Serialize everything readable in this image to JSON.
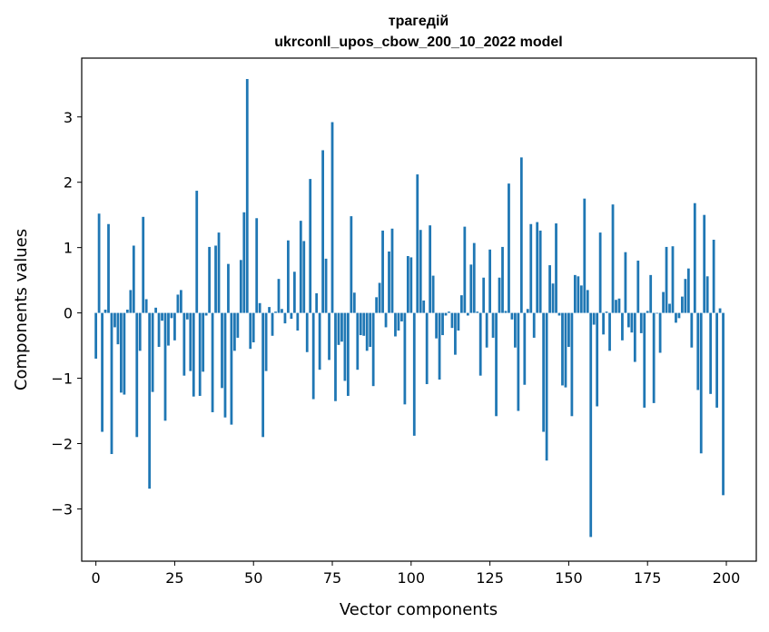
{
  "chart_data": {
    "type": "bar",
    "title": "трагедій",
    "subtitle": "ukrconll_upos_cbow_200_10_2022 model",
    "xlabel": "Vector components",
    "ylabel": "Components values",
    "xlim": [
      -4.5,
      209.5
    ],
    "ylim": [
      -3.8,
      3.9
    ],
    "xticks": [
      0,
      25,
      50,
      75,
      100,
      125,
      150,
      175,
      200
    ],
    "yticks": [
      -3,
      -2,
      -1,
      0,
      1,
      2,
      3
    ],
    "xtick_labels": [
      "0",
      "25",
      "50",
      "75",
      "100",
      "125",
      "150",
      "175",
      "200"
    ],
    "ytick_labels": [
      "−3",
      "−2",
      "−1",
      "0",
      "1",
      "2",
      "3"
    ],
    "bar_color": "#1f77b4",
    "grid": false,
    "x": [
      0,
      1,
      2,
      3,
      4,
      5,
      6,
      7,
      8,
      9,
      10,
      11,
      12,
      13,
      14,
      15,
      16,
      17,
      18,
      19,
      20,
      21,
      22,
      23,
      24,
      25,
      26,
      27,
      28,
      29,
      30,
      31,
      32,
      33,
      34,
      35,
      36,
      37,
      38,
      39,
      40,
      41,
      42,
      43,
      44,
      45,
      46,
      47,
      48,
      49,
      50,
      51,
      52,
      53,
      54,
      55,
      56,
      57,
      58,
      59,
      60,
      61,
      62,
      63,
      64,
      65,
      66,
      67,
      68,
      69,
      70,
      71,
      72,
      73,
      74,
      75,
      76,
      77,
      78,
      79,
      80,
      81,
      82,
      83,
      84,
      85,
      86,
      87,
      88,
      89,
      90,
      91,
      92,
      93,
      94,
      95,
      96,
      97,
      98,
      99,
      100,
      101,
      102,
      103,
      104,
      105,
      106,
      107,
      108,
      109,
      110,
      111,
      112,
      113,
      114,
      115,
      116,
      117,
      118,
      119,
      120,
      121,
      122,
      123,
      124,
      125,
      126,
      127,
      128,
      129,
      130,
      131,
      132,
      133,
      134,
      135,
      136,
      137,
      138,
      139,
      140,
      141,
      142,
      143,
      144,
      145,
      146,
      147,
      148,
      149,
      150,
      151,
      152,
      153,
      154,
      155,
      156,
      157,
      158,
      159,
      160,
      161,
      162,
      163,
      164,
      165,
      166,
      167,
      168,
      169,
      170,
      171,
      172,
      173,
      174,
      175,
      176,
      177,
      178,
      179,
      180,
      181,
      182,
      183,
      184,
      185,
      186,
      187,
      188,
      189,
      190,
      191,
      192,
      193,
      194,
      195,
      196,
      197,
      198,
      199
    ],
    "values": [
      -0.7,
      1.52,
      -1.82,
      0.05,
      1.36,
      -2.16,
      -0.22,
      -0.48,
      -1.22,
      -1.25,
      0.05,
      0.35,
      1.03,
      -1.9,
      -0.58,
      1.47,
      0.21,
      -2.69,
      -1.21,
      0.08,
      -0.52,
      -0.12,
      -1.65,
      -0.5,
      -0.08,
      -0.42,
      0.28,
      0.35,
      -0.96,
      -0.1,
      -0.89,
      -1.28,
      1.87,
      -1.27,
      -0.9,
      -0.04,
      1.01,
      -1.52,
      1.03,
      1.23,
      -1.15,
      -1.6,
      0.75,
      -1.71,
      -0.58,
      -0.38,
      0.81,
      1.54,
      3.58,
      -0.55,
      -0.45,
      1.45,
      0.15,
      -1.9,
      -0.89,
      0.09,
      -0.35,
      0.02,
      0.52,
      0.06,
      -0.16,
      1.11,
      -0.09,
      0.63,
      -0.27,
      1.41,
      1.1,
      -0.6,
      2.05,
      -1.32,
      0.3,
      -0.87,
      2.49,
      0.83,
      -0.72,
      2.92,
      -1.35,
      -0.49,
      -0.44,
      -1.04,
      -1.27,
      1.48,
      0.31,
      -0.87,
      -0.34,
      -0.35,
      -0.58,
      -0.52,
      -1.12,
      0.24,
      0.46,
      1.26,
      -0.22,
      0.94,
      1.29,
      -0.36,
      -0.27,
      -0.13,
      -1.4,
      0.87,
      0.85,
      -1.88,
      2.12,
      1.27,
      0.19,
      -1.09,
      1.34,
      0.57,
      -0.39,
      -1.02,
      -0.34,
      -0.04,
      0.02,
      -0.23,
      -0.64,
      -0.27,
      0.27,
      1.32,
      -0.04,
      0.74,
      1.07,
      0.02,
      -0.96,
      0.54,
      -0.53,
      0.97,
      -0.38,
      -1.58,
      0.54,
      1.01,
      0.03,
      1.98,
      -0.1,
      -0.53,
      -1.5,
      2.38,
      -1.1,
      0.06,
      1.36,
      -0.38,
      1.39,
      1.26,
      -1.82,
      -2.26,
      0.73,
      0.45,
      1.37,
      -0.04,
      -1.11,
      -1.14,
      -0.52,
      -1.58,
      0.58,
      0.56,
      0.42,
      1.75,
      0.35,
      -3.43,
      -0.18,
      -1.43,
      1.23,
      -0.33,
      0.02,
      -0.58,
      1.66,
      0.2,
      0.22,
      -0.42,
      0.93,
      -0.22,
      -0.3,
      -0.75,
      0.8,
      -0.31,
      -1.45,
      0.03,
      0.58,
      -1.38,
      -0.01,
      -0.61,
      0.32,
      1.01,
      0.14,
      1.02,
      -0.15,
      -0.08,
      0.25,
      0.52,
      0.68,
      -0.53,
      1.68,
      -1.18,
      -2.15,
      1.5,
      0.56,
      -1.24,
      1.12,
      -1.45,
      0.07,
      -2.79
    ]
  }
}
